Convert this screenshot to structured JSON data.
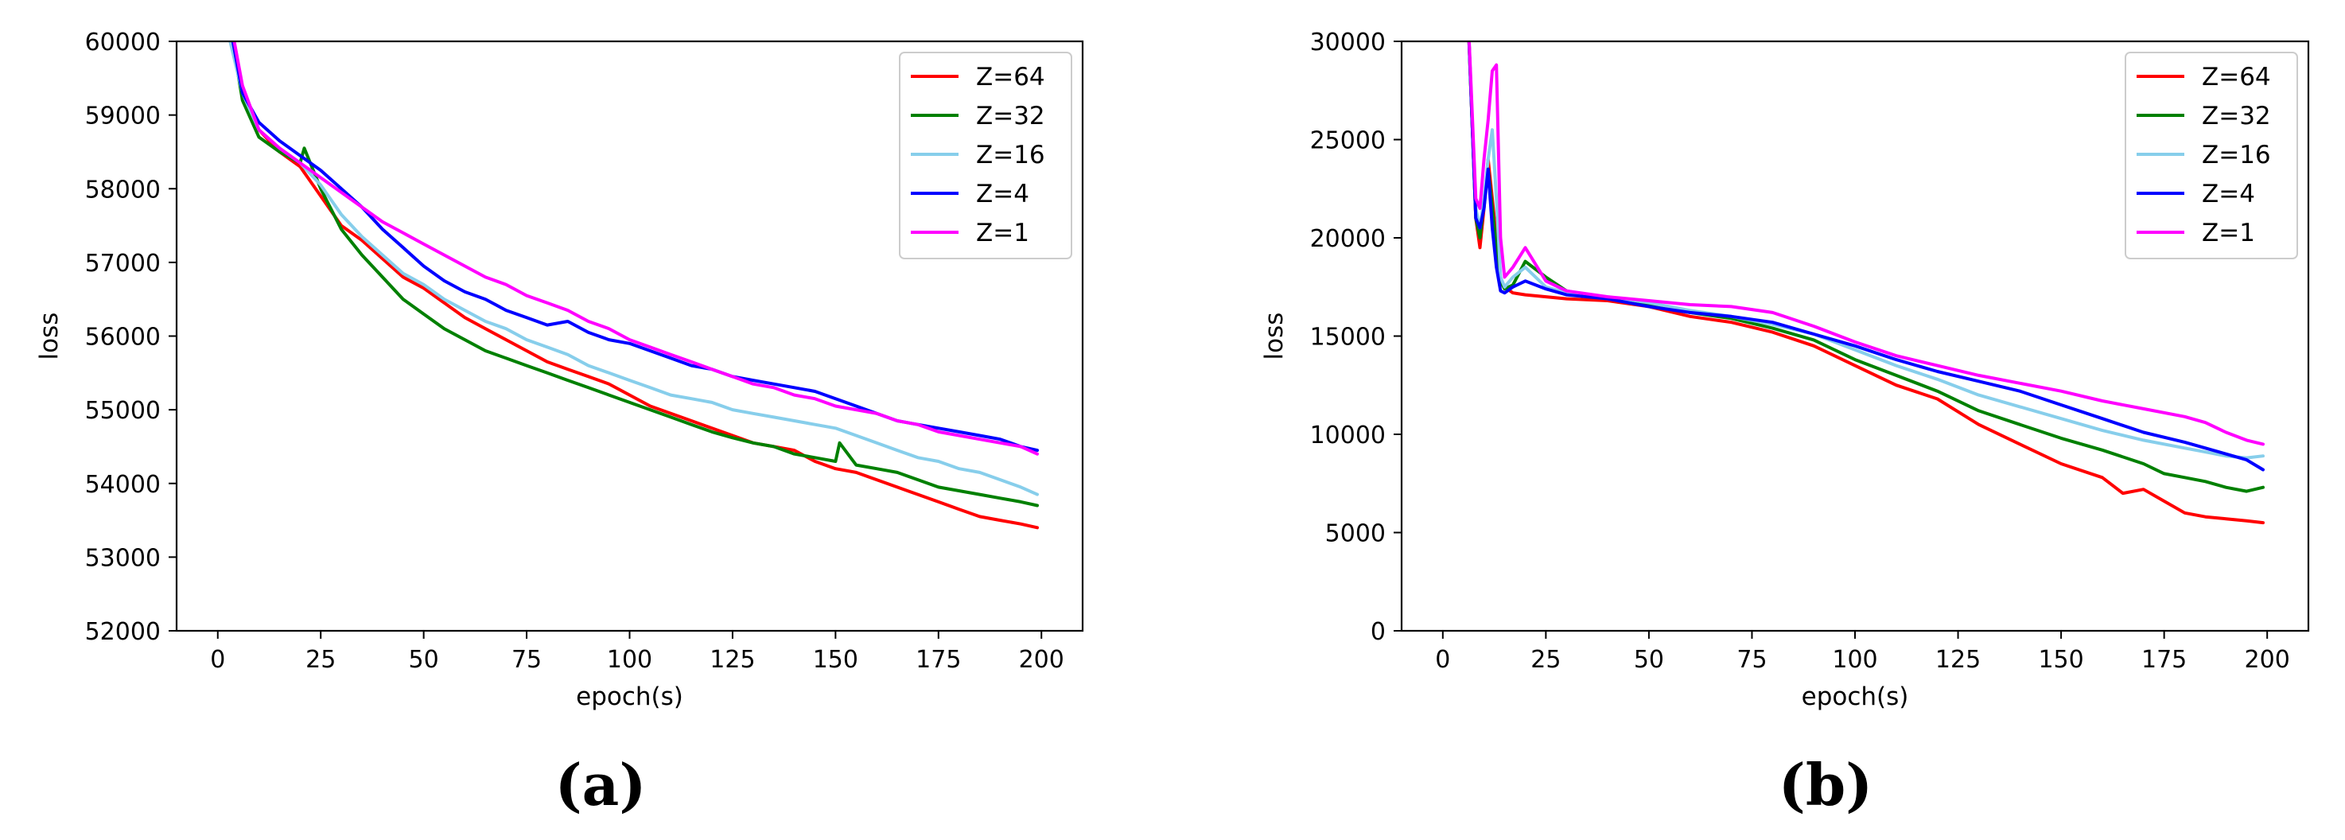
{
  "chart_data": [
    {
      "type": "line",
      "panel_label": "(a)",
      "xlabel": "epoch(s)",
      "ylabel": "loss",
      "xlim": [
        -10,
        210
      ],
      "ylim": [
        52000,
        60000
      ],
      "xticks": [
        0,
        25,
        50,
        75,
        100,
        125,
        150,
        175,
        200
      ],
      "yticks": [
        52000,
        53000,
        54000,
        55000,
        56000,
        57000,
        58000,
        59000,
        60000
      ],
      "legend": "top-right",
      "grid": false,
      "series": [
        {
          "name": "Z=64",
          "color": "#ff0000",
          "x": [
            0,
            3,
            6,
            10,
            15,
            20,
            25,
            30,
            35,
            40,
            45,
            50,
            55,
            60,
            65,
            70,
            75,
            80,
            85,
            90,
            95,
            100,
            105,
            110,
            115,
            120,
            125,
            130,
            135,
            140,
            145,
            150,
            155,
            160,
            165,
            170,
            175,
            180,
            185,
            190,
            195,
            199
          ],
          "y": [
            62000,
            60300,
            59300,
            58800,
            58500,
            58300,
            57900,
            57500,
            57300,
            57050,
            56800,
            56650,
            56450,
            56250,
            56100,
            55950,
            55800,
            55650,
            55550,
            55450,
            55350,
            55200,
            55050,
            54950,
            54850,
            54750,
            54650,
            54550,
            54500,
            54450,
            54300,
            54200,
            54150,
            54050,
            53950,
            53850,
            53750,
            53650,
            53550,
            53500,
            53450,
            53400
          ]
        },
        {
          "name": "Z=32",
          "color": "#008000",
          "x": [
            0,
            3,
            6,
            10,
            15,
            20,
            21,
            25,
            30,
            35,
            40,
            45,
            50,
            55,
            60,
            65,
            70,
            75,
            80,
            85,
            90,
            95,
            100,
            105,
            110,
            115,
            120,
            125,
            130,
            135,
            140,
            145,
            150,
            151,
            155,
            160,
            165,
            170,
            175,
            180,
            185,
            190,
            195,
            199
          ],
          "y": [
            62000,
            60200,
            59200,
            58700,
            58500,
            58350,
            58550,
            58000,
            57450,
            57100,
            56800,
            56500,
            56300,
            56100,
            55950,
            55800,
            55700,
            55600,
            55500,
            55400,
            55300,
            55200,
            55100,
            55000,
            54900,
            54800,
            54700,
            54620,
            54550,
            54500,
            54400,
            54350,
            54300,
            54550,
            54250,
            54200,
            54150,
            54050,
            53950,
            53900,
            53850,
            53800,
            53750,
            53700
          ]
        },
        {
          "name": "Z=16",
          "color": "#87ceeb",
          "x": [
            0,
            3,
            6,
            10,
            15,
            20,
            25,
            30,
            35,
            40,
            45,
            50,
            55,
            60,
            65,
            70,
            75,
            80,
            85,
            90,
            95,
            100,
            105,
            110,
            115,
            120,
            125,
            130,
            135,
            140,
            145,
            150,
            155,
            160,
            165,
            170,
            175,
            180,
            185,
            190,
            195,
            199
          ],
          "y": [
            62000,
            60000,
            59300,
            58800,
            58550,
            58350,
            58050,
            57650,
            57350,
            57100,
            56850,
            56700,
            56500,
            56350,
            56200,
            56100,
            55950,
            55850,
            55750,
            55600,
            55500,
            55400,
            55300,
            55200,
            55150,
            55100,
            55000,
            54950,
            54900,
            54850,
            54800,
            54750,
            54650,
            54550,
            54450,
            54350,
            54300,
            54200,
            54150,
            54050,
            53950,
            53850
          ]
        },
        {
          "name": "Z=4",
          "color": "#0000ff",
          "x": [
            0,
            3,
            6,
            10,
            15,
            20,
            25,
            30,
            35,
            40,
            45,
            50,
            55,
            60,
            65,
            70,
            75,
            80,
            85,
            90,
            95,
            100,
            105,
            110,
            115,
            120,
            125,
            130,
            135,
            140,
            145,
            150,
            155,
            160,
            165,
            170,
            175,
            180,
            185,
            190,
            195,
            199
          ],
          "y": [
            62000,
            60200,
            59300,
            58900,
            58650,
            58450,
            58250,
            58000,
            57750,
            57450,
            57200,
            56950,
            56750,
            56600,
            56500,
            56350,
            56250,
            56150,
            56200,
            56050,
            55950,
            55900,
            55800,
            55700,
            55600,
            55550,
            55450,
            55400,
            55350,
            55300,
            55250,
            55150,
            55050,
            54950,
            54850,
            54800,
            54750,
            54700,
            54650,
            54600,
            54500,
            54450
          ]
        },
        {
          "name": "Z=1",
          "color": "#ff00ff",
          "x": [
            0,
            3,
            6,
            10,
            15,
            20,
            25,
            30,
            35,
            40,
            45,
            50,
            55,
            60,
            65,
            70,
            75,
            80,
            85,
            90,
            95,
            100,
            105,
            110,
            115,
            120,
            125,
            130,
            135,
            140,
            145,
            150,
            155,
            160,
            165,
            170,
            175,
            180,
            185,
            190,
            195,
            199
          ],
          "y": [
            62000,
            60300,
            59400,
            58800,
            58550,
            58350,
            58150,
            57950,
            57750,
            57550,
            57400,
            57250,
            57100,
            56950,
            56800,
            56700,
            56550,
            56450,
            56350,
            56200,
            56100,
            55950,
            55850,
            55750,
            55650,
            55550,
            55450,
            55350,
            55300,
            55200,
            55150,
            55050,
            55000,
            54950,
            54850,
            54800,
            54700,
            54650,
            54600,
            54550,
            54500,
            54400
          ]
        }
      ]
    },
    {
      "type": "line",
      "panel_label": "(b)",
      "xlabel": "epoch(s)",
      "ylabel": "loss",
      "xlim": [
        -10,
        210
      ],
      "ylim": [
        0,
        30000
      ],
      "xticks": [
        0,
        25,
        50,
        75,
        100,
        125,
        150,
        175,
        200
      ],
      "yticks": [
        0,
        5000,
        10000,
        15000,
        20000,
        25000,
        30000
      ],
      "legend": "top-right",
      "grid": false,
      "series": [
        {
          "name": "Z=64",
          "color": "#ff0000",
          "x": [
            6,
            8,
            9,
            10,
            11,
            12,
            13,
            14,
            15,
            17,
            20,
            25,
            30,
            40,
            50,
            60,
            70,
            80,
            90,
            100,
            110,
            120,
            130,
            140,
            150,
            160,
            165,
            170,
            175,
            180,
            185,
            190,
            195,
            199
          ],
          "y": [
            32000,
            21000,
            19500,
            21500,
            24000,
            22000,
            20000,
            17800,
            17500,
            17200,
            17100,
            17000,
            16900,
            16800,
            16500,
            16000,
            15700,
            15200,
            14500,
            13500,
            12500,
            11800,
            10500,
            9500,
            8500,
            7800,
            7000,
            7200,
            6600,
            6000,
            5800,
            5700,
            5600,
            5500
          ]
        },
        {
          "name": "Z=32",
          "color": "#008000",
          "x": [
            6,
            8,
            9,
            10,
            11,
            12,
            13,
            14,
            15,
            17,
            20,
            25,
            30,
            40,
            50,
            60,
            70,
            80,
            90,
            100,
            110,
            120,
            130,
            140,
            150,
            160,
            170,
            175,
            180,
            185,
            190,
            195,
            199
          ],
          "y": [
            32000,
            21000,
            20000,
            21800,
            23500,
            21500,
            19500,
            17800,
            17400,
            17600,
            18800,
            18000,
            17300,
            16900,
            16600,
            16200,
            15900,
            15400,
            14800,
            13800,
            13000,
            12200,
            11200,
            10500,
            9800,
            9200,
            8500,
            8000,
            7800,
            7600,
            7300,
            7100,
            7300
          ]
        },
        {
          "name": "Z=16",
          "color": "#87ceeb",
          "x": [
            6,
            8,
            9,
            10,
            11,
            12,
            13,
            14,
            15,
            17,
            20,
            25,
            30,
            40,
            50,
            60,
            70,
            80,
            90,
            100,
            110,
            120,
            130,
            140,
            150,
            160,
            170,
            180,
            185,
            190,
            195,
            199
          ],
          "y": [
            32000,
            21500,
            20500,
            22000,
            24000,
            25500,
            22000,
            18000,
            17500,
            18000,
            18500,
            17500,
            17200,
            17000,
            16700,
            16300,
            16000,
            15600,
            15100,
            14300,
            13500,
            12800,
            12000,
            11400,
            10800,
            10200,
            9700,
            9300,
            9100,
            8900,
            8800,
            8900
          ]
        },
        {
          "name": "Z=4",
          "color": "#0000ff",
          "x": [
            6,
            8,
            9,
            10,
            11,
            12,
            13,
            14,
            15,
            17,
            20,
            25,
            30,
            40,
            50,
            60,
            70,
            80,
            90,
            100,
            110,
            120,
            130,
            140,
            150,
            160,
            170,
            180,
            185,
            190,
            195,
            199
          ],
          "y": [
            32000,
            21000,
            20500,
            21500,
            23500,
            20500,
            18500,
            17300,
            17200,
            17500,
            17800,
            17400,
            17100,
            16900,
            16500,
            16200,
            16000,
            15700,
            15100,
            14500,
            13800,
            13200,
            12700,
            12200,
            11500,
            10800,
            10100,
            9600,
            9300,
            9000,
            8700,
            8200
          ]
        },
        {
          "name": "Z=1",
          "color": "#ff00ff",
          "x": [
            6,
            8,
            9,
            10,
            11,
            12,
            13,
            14,
            15,
            17,
            20,
            25,
            30,
            40,
            50,
            60,
            70,
            80,
            90,
            100,
            110,
            120,
            130,
            140,
            150,
            160,
            170,
            180,
            185,
            190,
            195,
            199
          ],
          "y": [
            32000,
            22000,
            21500,
            24000,
            26000,
            28500,
            28800,
            20000,
            18000,
            18500,
            19500,
            17800,
            17300,
            17000,
            16800,
            16600,
            16500,
            16200,
            15500,
            14700,
            14000,
            13500,
            13000,
            12600,
            12200,
            11700,
            11300,
            10900,
            10600,
            10100,
            9700,
            9500
          ]
        }
      ]
    }
  ]
}
